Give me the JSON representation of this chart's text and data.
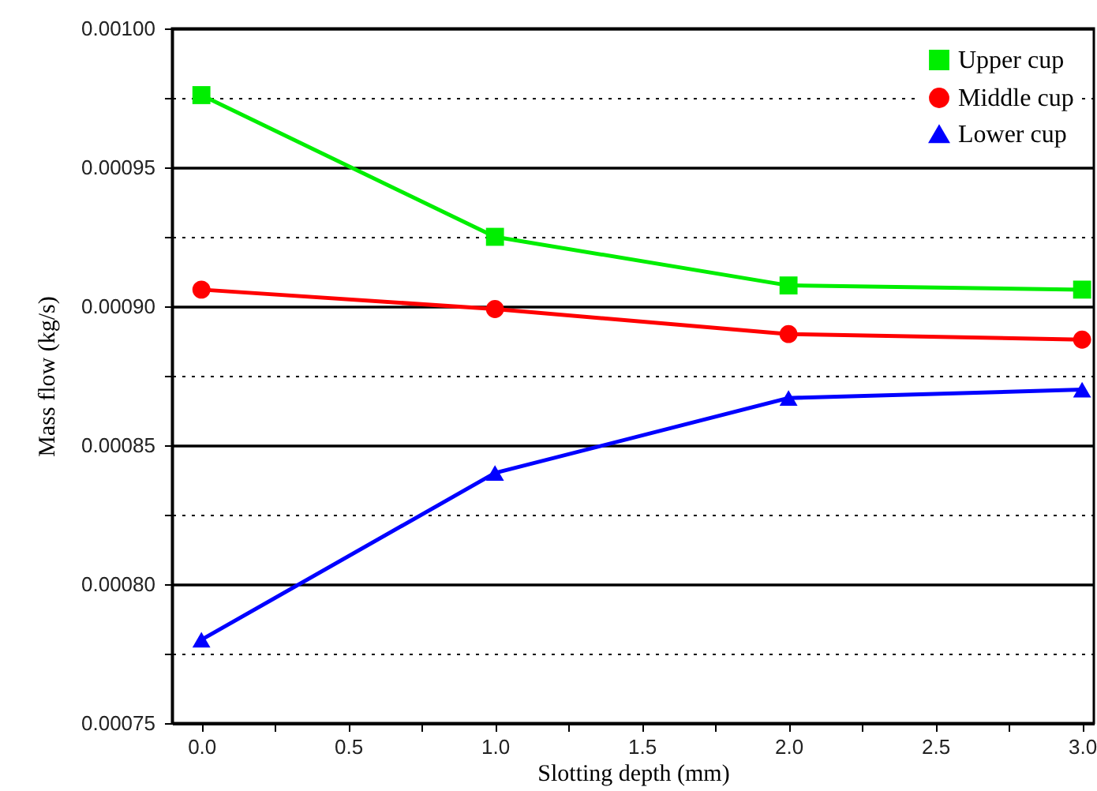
{
  "chart_data": {
    "type": "line",
    "xlabel": "Slotting depth (mm)",
    "ylabel": "Mass flow (kg/s)",
    "x": [
      0,
      1,
      2,
      3
    ],
    "series": [
      {
        "name": "Upper cup",
        "color": "#00ee00",
        "marker": "square",
        "values": [
          0.000976,
          0.000925,
          0.0009075,
          0.000906
        ]
      },
      {
        "name": "Middle cup",
        "color": "#ff0000",
        "marker": "circle",
        "values": [
          0.000906,
          0.000899,
          0.00089,
          0.000888
        ]
      },
      {
        "name": "Lower cup",
        "color": "#0000ff",
        "marker": "triangle",
        "values": [
          0.00078,
          0.00084,
          0.000867,
          0.00087
        ]
      }
    ],
    "xlim": [
      -0.1,
      3.04
    ],
    "xticks": [
      {
        "value": 0,
        "label": "0.0"
      },
      {
        "value": 0.25,
        "label": null
      },
      {
        "value": 0.5,
        "label": "0.5"
      },
      {
        "value": 0.75,
        "label": null
      },
      {
        "value": 1,
        "label": "1.0"
      },
      {
        "value": 1.25,
        "label": null
      },
      {
        "value": 1.5,
        "label": "1.5"
      },
      {
        "value": 1.75,
        "label": null
      },
      {
        "value": 2,
        "label": "2.0"
      },
      {
        "value": 2.25,
        "label": null
      },
      {
        "value": 2.5,
        "label": "2.5"
      },
      {
        "value": 2.75,
        "label": null
      },
      {
        "value": 3,
        "label": "3.0"
      }
    ],
    "ylim": [
      0.00075,
      0.001
    ],
    "yticks": [
      {
        "value": 0.00075,
        "label": "0.00075"
      },
      {
        "value": 0.000775,
        "label": null
      },
      {
        "value": 0.0008,
        "label": "0.00080"
      },
      {
        "value": 0.000825,
        "label": null
      },
      {
        "value": 0.00085,
        "label": "0.00085"
      },
      {
        "value": 0.000875,
        "label": null
      },
      {
        "value": 0.0009,
        "label": "0.00090"
      },
      {
        "value": 0.000925,
        "label": null
      },
      {
        "value": 0.00095,
        "label": "0.00095"
      },
      {
        "value": 0.000975,
        "label": null
      },
      {
        "value": 0.001,
        "label": "0.00100"
      }
    ],
    "grid": "y",
    "legend": "top right",
    "line_style": "solid"
  }
}
